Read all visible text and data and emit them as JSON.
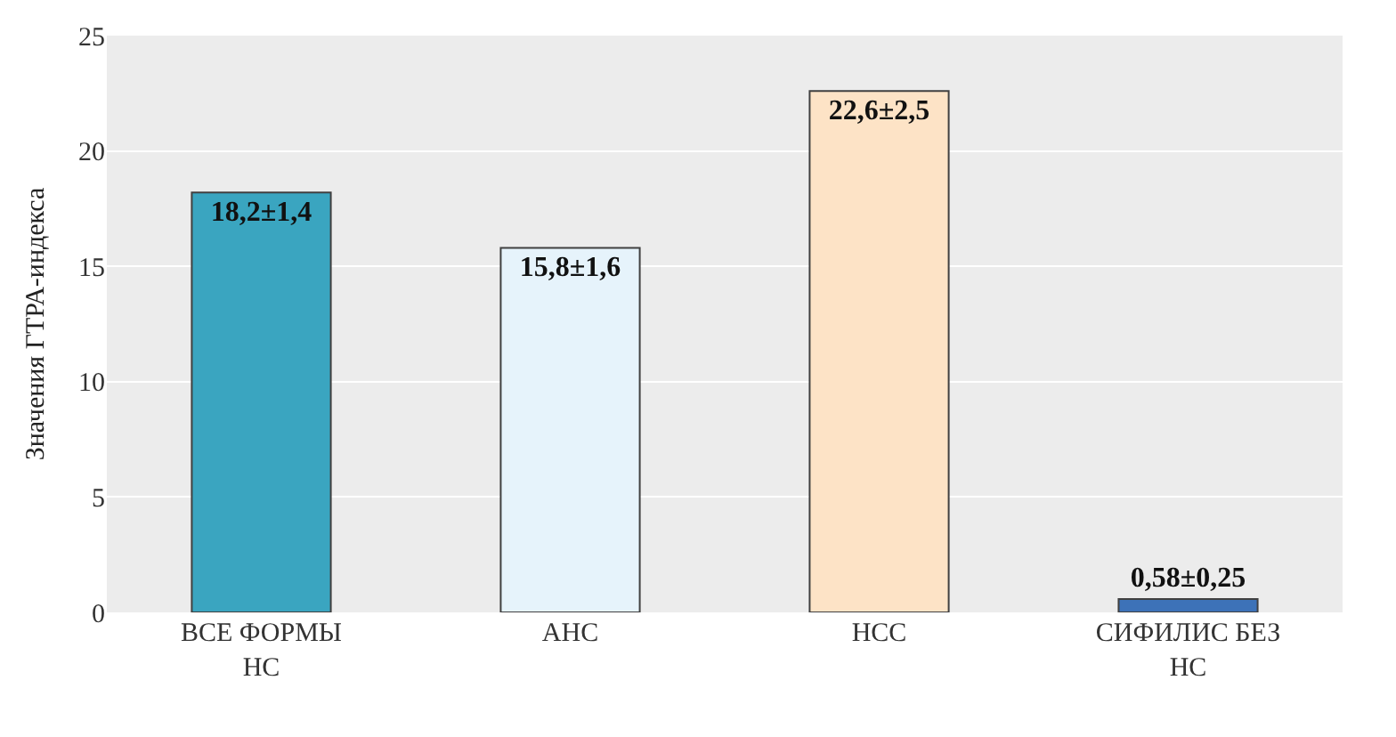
{
  "chart_data": {
    "type": "bar",
    "ylabel": "Значения ГТРА-индекса",
    "categories": [
      "ВСЕ ФОРМЫ НС",
      "АНС",
      "НСС",
      "СИФИЛИС БЕЗ НС"
    ],
    "values": [
      18.2,
      15.8,
      22.6,
      0.58
    ],
    "value_labels": [
      "18,2±1,4",
      "15,8±1,6",
      "22,6±2,5",
      "0,58±0,25"
    ],
    "colors": [
      "#3aa5c0",
      "#e6f3fb",
      "#fde3c6",
      "#3d72b8"
    ],
    "ylim": [
      0,
      25
    ],
    "yticks": [
      0,
      5,
      10,
      15,
      20,
      25
    ],
    "grid": "y"
  }
}
